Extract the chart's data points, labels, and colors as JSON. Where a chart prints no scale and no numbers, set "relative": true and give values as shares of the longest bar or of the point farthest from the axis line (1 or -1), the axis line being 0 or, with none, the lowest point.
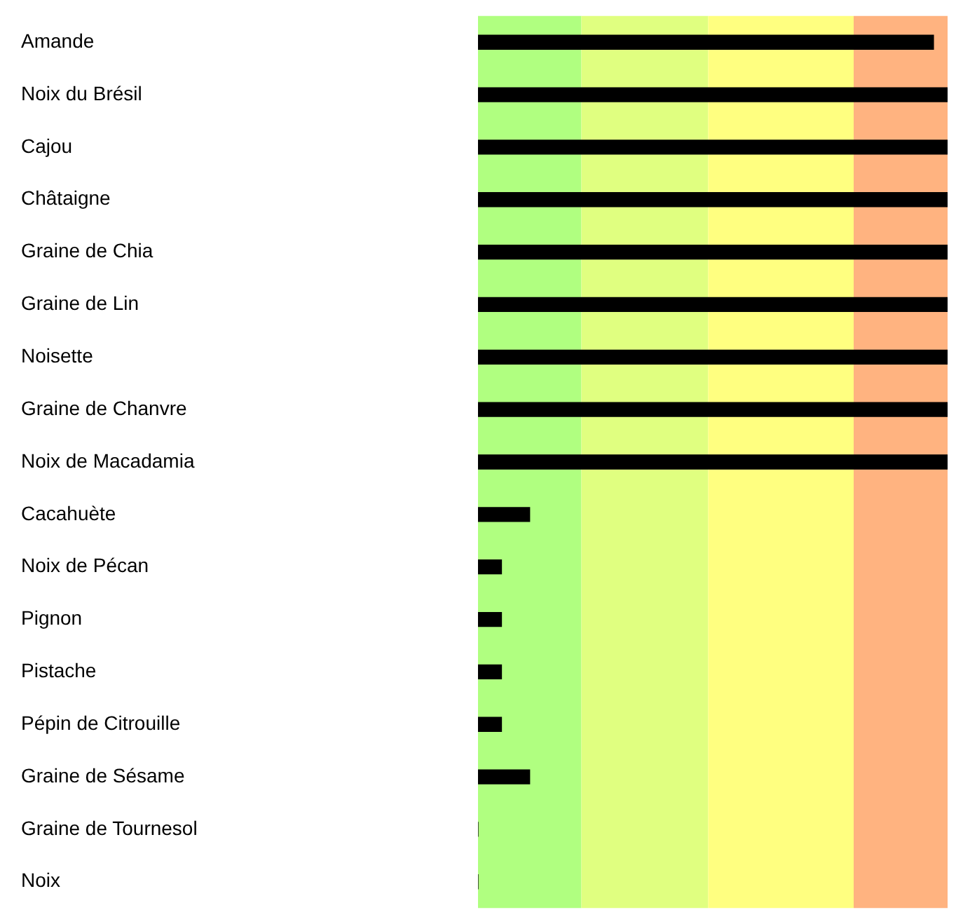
{
  "chart_data": {
    "type": "bar",
    "orientation": "horizontal",
    "relative": true,
    "categories": [
      "Amande",
      "Noix du Brésil",
      "Cajou",
      "Châtaigne",
      "Graine de Chia",
      "Graine de Lin",
      "Noisette",
      "Graine de Chanvre",
      "Noix de Macadamia",
      "Cacahuète",
      "Noix de Pécan",
      "Pignon",
      "Pistache",
      "Pépin de Citrouille",
      "Graine de Sésame",
      "Graine de Tournesol",
      "Noix"
    ],
    "values": [
      0.97,
      1,
      1,
      1,
      1,
      1,
      1,
      1,
      1,
      0.11,
      0.05,
      0.05,
      0.05,
      0.05,
      0.11,
      0,
      0
    ],
    "color": "#000000",
    "bands": [
      {
        "axis": "x",
        "from": 0,
        "to": 0.22,
        "color": "#b0ff80"
      },
      {
        "axis": "x",
        "from": 0.22,
        "to": 0.49,
        "color": "#e0ff80"
      },
      {
        "axis": "x",
        "from": 0.49,
        "to": 0.8,
        "color": "#ffff80"
      },
      {
        "axis": "x",
        "from": 0.8,
        "to": 1,
        "color": "#ffb380"
      }
    ],
    "legend": false
  }
}
